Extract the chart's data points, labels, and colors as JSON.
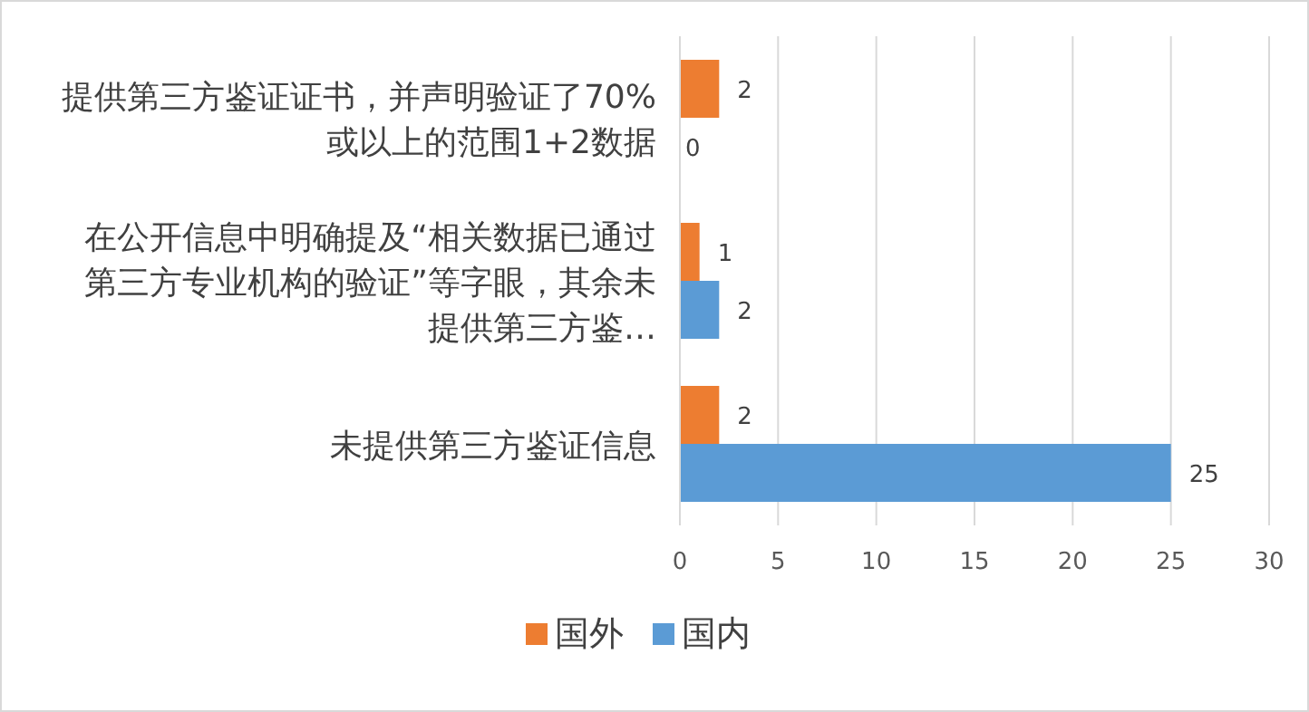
{
  "chart_data": {
    "type": "bar",
    "orientation": "horizontal",
    "categories": [
      "提供第三方鉴证证书，并声明验证了70%或以上的范围1+2数据",
      "在公开信息中明确提及“相关数据已通过第三方专业机构的验证”等字眼，其余未提供第三方鉴…",
      "未提供第三方鉴证信息"
    ],
    "series": [
      {
        "name": "国外",
        "color": "#ed7d31",
        "values": [
          2,
          1,
          2
        ]
      },
      {
        "name": "国内",
        "color": "#5b9bd5",
        "values": [
          0,
          2,
          25
        ]
      }
    ],
    "xlim": [
      0,
      30
    ],
    "xticks": [
      0,
      5,
      10,
      15,
      20,
      25,
      30
    ],
    "grid": "x",
    "legend": "bottom",
    "data_labels": true
  }
}
